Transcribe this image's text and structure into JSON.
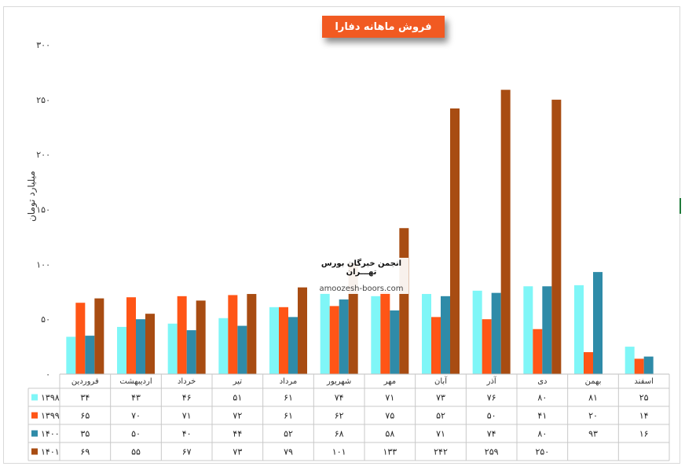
{
  "chart_data": {
    "type": "bar",
    "title": "فروش ماهانه دفارا",
    "ylabel": "میلیارد تومان",
    "ylim": [
      0,
      300
    ],
    "yticks": [
      "۰",
      "۵۰",
      "۱۰۰",
      "۱۵۰",
      "۲۰۰",
      "۲۵۰",
      "۳۰۰"
    ],
    "grid": false,
    "legend": "table-bottom-left",
    "categories": [
      "فروردین",
      "اردیبهشت",
      "خرداد",
      "تیر",
      "مرداد",
      "شهریور",
      "مهر",
      "آبان",
      "آذر",
      "دی",
      "بهمن",
      "اسفند"
    ],
    "series": [
      {
        "name": "۱۳۹۸",
        "color": "#7ff6f7",
        "values": [
          34,
          43,
          46,
          51,
          61,
          74,
          71,
          73,
          76,
          80,
          81,
          25
        ],
        "labels": [
          "۳۴",
          "۴۳",
          "۴۶",
          "۵۱",
          "۶۱",
          "۷۴",
          "۷۱",
          "۷۳",
          "۷۶",
          "۸۰",
          "۸۱",
          "۲۵"
        ]
      },
      {
        "name": "۱۳۹۹",
        "color": "#ff5516",
        "values": [
          65,
          70,
          71,
          72,
          61,
          62,
          75,
          52,
          50,
          41,
          20,
          14
        ],
        "labels": [
          "۶۵",
          "۷۰",
          "۷۱",
          "۷۲",
          "۶۱",
          "۶۲",
          "۷۵",
          "۵۲",
          "۵۰",
          "۴۱",
          "۲۰",
          "۱۴"
        ]
      },
      {
        "name": "۱۴۰۰",
        "color": "#2f8ba8",
        "values": [
          35,
          50,
          40,
          44,
          52,
          68,
          58,
          71,
          74,
          80,
          93,
          16
        ],
        "labels": [
          "۳۵",
          "۵۰",
          "۴۰",
          "۴۴",
          "۵۲",
          "۶۸",
          "۵۸",
          "۷۱",
          "۷۴",
          "۸۰",
          "۹۳",
          "۱۶"
        ]
      },
      {
        "name": "۱۴۰۱",
        "color": "#a84c12",
        "values": [
          69,
          55,
          67,
          73,
          79,
          101,
          133,
          242,
          259,
          250,
          null,
          null
        ],
        "labels": [
          "۶۹",
          "۵۵",
          "۶۷",
          "۷۳",
          "۷۹",
          "۱۰۱",
          "۱۳۳",
          "۲۴۲",
          "۲۵۹",
          "۲۵۰",
          "",
          ""
        ]
      }
    ]
  },
  "watermark": {
    "title": "انجمن خبرگان بورس تهـــران",
    "url": "amoozesh-boors.com"
  }
}
